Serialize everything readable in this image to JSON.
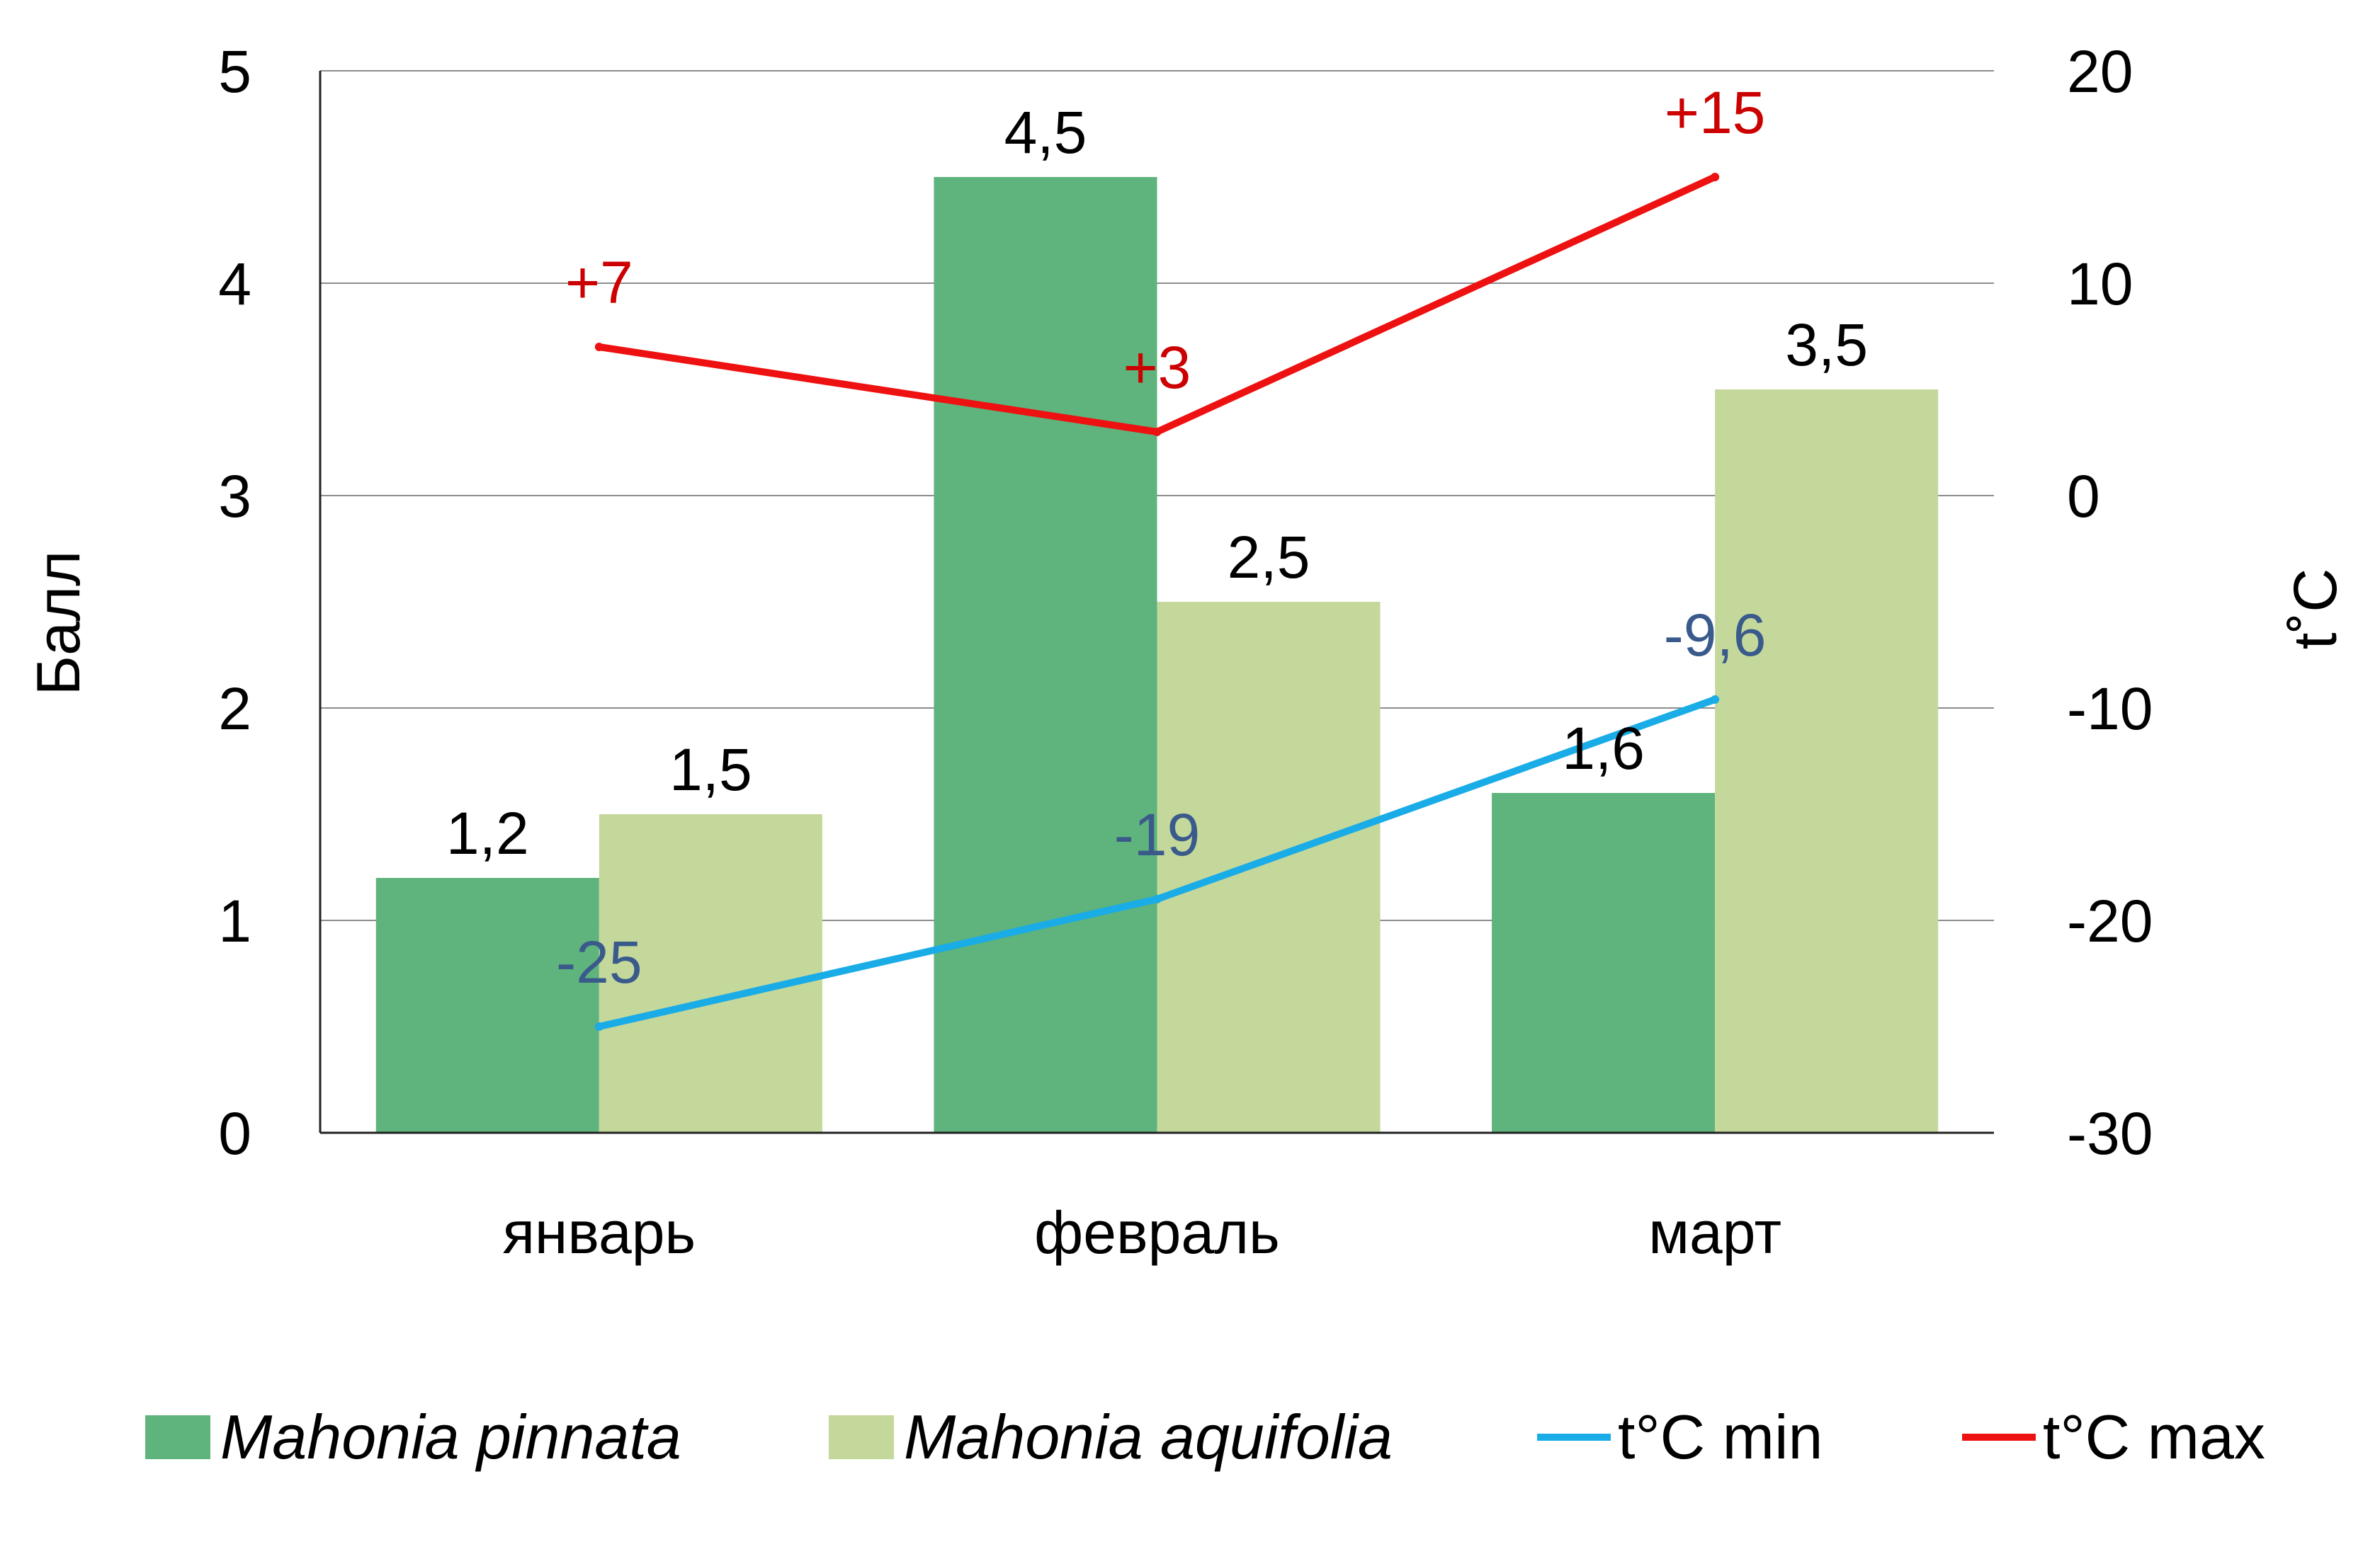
{
  "chart_data": {
    "type": "bar",
    "categories": [
      "январь",
      "февраль",
      "март"
    ],
    "series": [
      {
        "name": "Mahonia pinnata",
        "kind": "bar",
        "axis": "left",
        "color": "#5fb37c",
        "values": [
          1.2,
          4.5,
          1.6
        ],
        "labels": [
          "1,2",
          "4,5",
          "1,6"
        ]
      },
      {
        "name": "Mahonia aquifolia",
        "kind": "bar",
        "axis": "left",
        "color": "#c5d89b",
        "values": [
          1.5,
          2.5,
          3.5
        ],
        "labels": [
          "1,5",
          "2,5",
          "3,5"
        ]
      },
      {
        "name": "t°C min",
        "kind": "line",
        "axis": "right",
        "color": "#1aace6",
        "label_color": "#3a5a8c",
        "values": [
          -25,
          -19,
          -9.6
        ],
        "labels": [
          "-25",
          "-19",
          "-9,6"
        ]
      },
      {
        "name": "t°C max",
        "kind": "line",
        "axis": "right",
        "color": "#ee1111",
        "label_color": "#cc0000",
        "values": [
          7,
          3,
          15
        ],
        "labels": [
          "+7",
          "+3",
          "+15"
        ]
      }
    ],
    "ylabel": "Балл",
    "y2label": "t˚C",
    "ylim": [
      0,
      5
    ],
    "y2lim": [
      -30,
      20
    ],
    "yticks": [
      "0",
      "1",
      "2",
      "3",
      "4",
      "5"
    ],
    "y2ticks": [
      "-30",
      "-20",
      "-10",
      "0",
      "10",
      "20"
    ],
    "grid": true,
    "legend_position": "bottom"
  }
}
